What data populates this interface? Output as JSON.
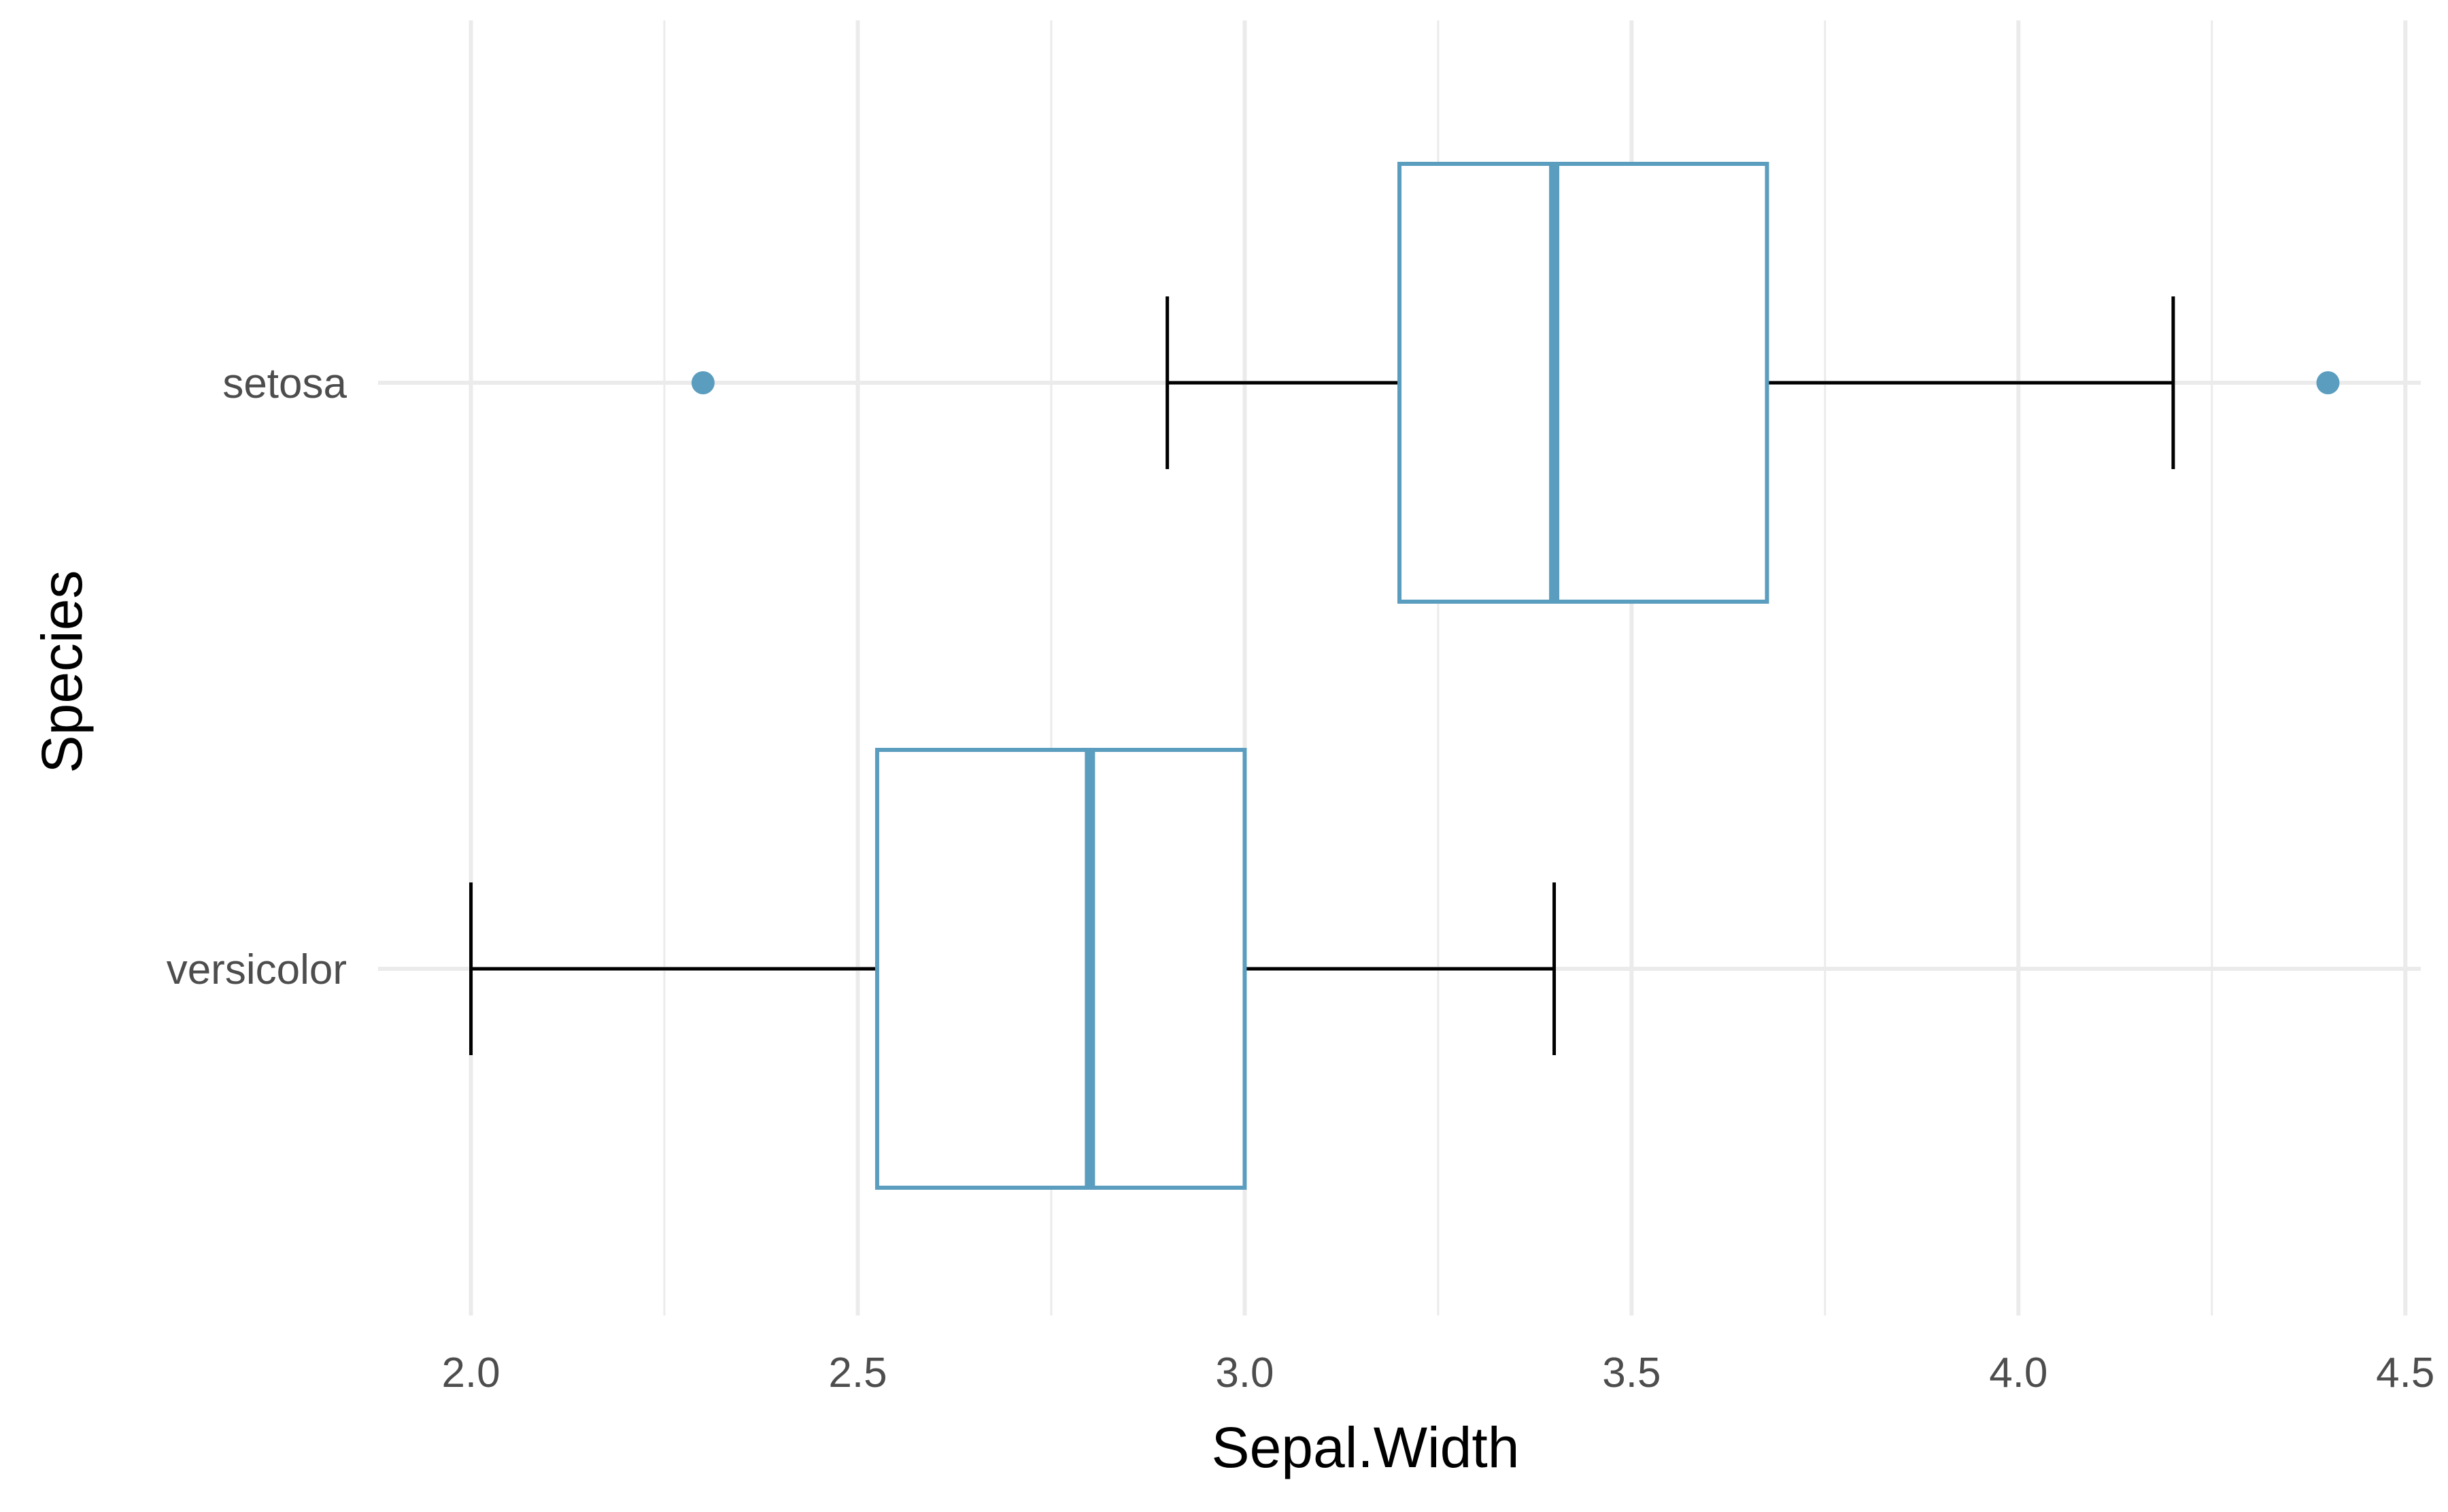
{
  "chart_data": {
    "type": "boxplot",
    "orientation": "horizontal",
    "xlabel": "Sepal.Width",
    "ylabel": "Species",
    "xlim": [
      1.88,
      4.52
    ],
    "x_ticks": [
      "2.0",
      "2.5",
      "3.0",
      "3.5",
      "4.0",
      "4.5"
    ],
    "x_tick_values": [
      2.0,
      2.5,
      3.0,
      3.5,
      4.0,
      4.5
    ],
    "categories": [
      "setosa",
      "versicolor"
    ],
    "boxes": [
      {
        "category": "setosa",
        "whisker_low": 2.9,
        "q1": 3.2,
        "median": 3.4,
        "q3": 3.675,
        "whisker_high": 4.2,
        "outliers": [
          2.3,
          4.4
        ]
      },
      {
        "category": "versicolor",
        "whisker_low": 2.0,
        "q1": 2.525,
        "median": 2.8,
        "q3": 3.0,
        "whisker_high": 3.4,
        "outliers": []
      }
    ],
    "grid": true,
    "colors": {
      "box": "#5b9dbf",
      "whisker": "#000000",
      "grid": "#ebebeb"
    }
  }
}
